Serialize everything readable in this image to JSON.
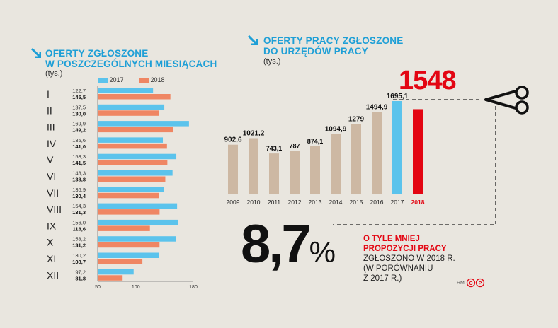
{
  "left": {
    "title_line1": "OFERTY ZGŁOSZONE",
    "title_line2": "W POSZCZEGÓLNYCH MIESIĄCACH",
    "unit": "(tys.)",
    "legend_2017": "2017",
    "legend_2018": "2018"
  },
  "right": {
    "title_line1": "OFERTY PRACY ZGŁOSZONE",
    "title_line2": "DO URZĘDÓW PRACY",
    "unit": "(tys.)",
    "highlight": "1548"
  },
  "summary": {
    "value": "8,7",
    "percent": "%",
    "red_line1": "O TYLE MNIEJ",
    "red_line2": "PROPOZYCJI PRACY",
    "line3": "ZGŁOSZONO W 2018 R.",
    "line4": "(W PORÓWNANIU",
    "line5": "Z 2017 R.)",
    "credit": "RM"
  },
  "colors": {
    "blue": "#5bc3ec",
    "salmon": "#ef8663",
    "tan": "#cdb8a3",
    "red": "#e30613",
    "title_blue": "#1e9fd6"
  },
  "chart_data": [
    {
      "type": "bar",
      "orientation": "horizontal",
      "title": "OFERTY ZGŁOSZONE W POSZCZEGÓLNYCH MIESIĄCACH",
      "categories": [
        "I",
        "II",
        "III",
        "IV",
        "V",
        "VI",
        "VII",
        "VIII",
        "IX",
        "X",
        "XI",
        "XII"
      ],
      "series": [
        {
          "name": "2017",
          "values": [
            122.7,
            137.5,
            169.9,
            135.6,
            153.3,
            148.3,
            136.9,
            154.3,
            156.0,
            153.2,
            130.2,
            97.2
          ],
          "labels": [
            "122,7",
            "137,5",
            "169,9",
            "135,6",
            "153,3",
            "148,3",
            "136,9",
            "154,3",
            "156,0",
            "153,2",
            "130,2",
            "97,2"
          ]
        },
        {
          "name": "2018",
          "values": [
            145.5,
            130.0,
            149.2,
            141.0,
            141.5,
            138.8,
            130.4,
            131.3,
            118.6,
            131.2,
            108.7,
            81.8
          ],
          "labels": [
            "145,5",
            "130,0",
            "149,2",
            "141,0",
            "141,5",
            "138,8",
            "130,4",
            "131,3",
            "118,6",
            "131,2",
            "108,7",
            "81,8"
          ]
        }
      ],
      "xlim": [
        50,
        180
      ],
      "ticks": [
        "50",
        "100",
        "180"
      ]
    },
    {
      "type": "bar",
      "title": "OFERTY PRACY ZGŁOSZONE DO URZĘDÓW PRACY",
      "categories": [
        "2009",
        "2010",
        "2011",
        "2012",
        "2013",
        "2014",
        "2015",
        "2016",
        "2017",
        "2018"
      ],
      "values": [
        902.6,
        1021.2,
        743.1,
        787,
        874.1,
        1094.9,
        1279,
        1494.9,
        1695.1,
        1548
      ],
      "labels": [
        "902,6",
        "1021,2",
        "743,1",
        "787",
        "874,1",
        "1094,9",
        "1279",
        "1494,9",
        "1695,1",
        "1548"
      ],
      "bar_colors": [
        "tan",
        "tan",
        "tan",
        "tan",
        "tan",
        "tan",
        "tan",
        "tan",
        "blue",
        "red"
      ]
    }
  ]
}
